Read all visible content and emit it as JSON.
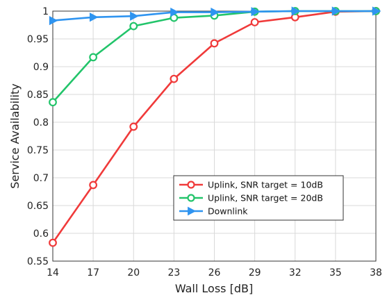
{
  "chart_data": {
    "type": "line",
    "xlabel": "Wall Loss [dB]",
    "ylabel": "Service Availability",
    "xlim": [
      14,
      38
    ],
    "ylim": [
      0.55,
      1
    ],
    "x_ticks": [
      "14",
      "17",
      "20",
      "23",
      "26",
      "29",
      "32",
      "35",
      "38"
    ],
    "y_ticks": [
      "0.55",
      "0.6",
      "0.65",
      "0.7",
      "0.75",
      "0.8",
      "0.85",
      "0.9",
      "0.95",
      "1"
    ],
    "grid": true,
    "legend_position": "lower-right",
    "series": [
      {
        "name": "Uplink, SNR target = 10dB",
        "color": "#f03a3a",
        "marker": "circle",
        "x": [
          14,
          17,
          20,
          23,
          26,
          29,
          32,
          35,
          38
        ],
        "y": [
          0.583,
          0.687,
          0.792,
          0.878,
          0.942,
          0.98,
          0.989,
          0.999,
          1.0
        ]
      },
      {
        "name": "Uplink, SNR target = 20dB",
        "color": "#22c46a",
        "marker": "circle",
        "x": [
          14,
          17,
          20,
          23,
          26,
          29,
          32,
          35,
          38
        ],
        "y": [
          0.836,
          0.917,
          0.973,
          0.988,
          0.992,
          0.999,
          1.0,
          1.0,
          1.0
        ]
      },
      {
        "name": "Downlink",
        "color": "#2f94f0",
        "marker": "triangle-right",
        "x": [
          14,
          17,
          20,
          23,
          26,
          29,
          32,
          35,
          38
        ],
        "y": [
          0.983,
          0.989,
          0.991,
          0.998,
          0.998,
          0.999,
          1.0,
          1.0,
          1.0
        ]
      }
    ]
  }
}
